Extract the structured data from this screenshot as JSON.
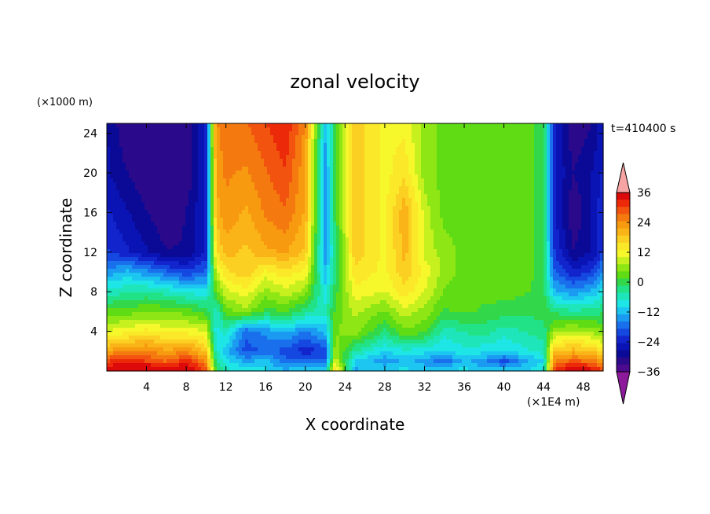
{
  "chart_data": {
    "type": "heatmap",
    "title": "zonal velocity",
    "time_label": "t=410400 s",
    "xlabel": "X coordinate",
    "ylabel": "Z coordinate",
    "x_unit": "(×1E4 m)",
    "y_unit": "(×1000 m)",
    "xlim": [
      0,
      50
    ],
    "ylim": [
      0,
      25
    ],
    "x_ticks": [
      "4",
      "8",
      "12",
      "16",
      "20",
      "24",
      "28",
      "32",
      "36",
      "40",
      "44",
      "48"
    ],
    "x_tick_values": [
      4,
      8,
      12,
      16,
      20,
      24,
      28,
      32,
      36,
      40,
      44,
      48
    ],
    "y_ticks": [
      "4",
      "8",
      "12",
      "16",
      "20",
      "24"
    ],
    "y_tick_values": [
      4,
      8,
      12,
      16,
      20,
      24
    ],
    "colorbar": {
      "levels": [
        -42,
        -39,
        -36,
        -33,
        -30,
        -27,
        -24,
        -21,
        -18,
        -15,
        -12,
        -9,
        -6,
        -3,
        0,
        3,
        6,
        9,
        12,
        15,
        18,
        21,
        24,
        27,
        30,
        33,
        36,
        39,
        42
      ],
      "tick_labels": [
        "36",
        "24",
        "12",
        "0",
        "−12",
        "−24",
        "−36"
      ],
      "tick_values": [
        36,
        24,
        12,
        0,
        -12,
        -24,
        -36
      ],
      "colors": [
        "#dc0a0a",
        "#ec2a0a",
        "#f25410",
        "#f47a10",
        "#f89a10",
        "#fbb418",
        "#fbd022",
        "#fbe828",
        "#f6f82c",
        "#c6f01e",
        "#8ee614",
        "#5fdc14",
        "#32d84a",
        "#22e288",
        "#1ee6ba",
        "#1ee6e6",
        "#1cc6f0",
        "#1a9af0",
        "#1a70ec",
        "#1448e0",
        "#1224cc",
        "#0a14b4",
        "#0a0a96",
        "#2a0a8a",
        "#4c0a8e"
      ],
      "over_color": "#f6a4a4",
      "under_color": "#8c1a9a"
    },
    "x": [
      0,
      2,
      4,
      6,
      8,
      10,
      11,
      12,
      14,
      16,
      18,
      20,
      22,
      23,
      25,
      28,
      30,
      32,
      34,
      36,
      38,
      40,
      42,
      44,
      45,
      47,
      49,
      50
    ],
    "z": [
      0,
      1,
      2,
      4,
      6,
      8,
      10,
      12,
      16,
      20,
      25
    ],
    "values": [
      [
        36,
        38,
        39,
        36,
        38,
        30,
        0,
        -6,
        -8,
        -9,
        -12,
        -10,
        -9,
        18,
        -14,
        -10,
        -9,
        -12,
        -10,
        -9,
        -12,
        -11,
        -10,
        -8,
        30,
        38,
        34,
        30
      ],
      [
        30,
        32,
        30,
        27,
        32,
        24,
        -3,
        -9,
        -14,
        -12,
        -18,
        -16,
        -18,
        10,
        -10,
        -15,
        -12,
        -14,
        -18,
        -12,
        -15,
        -20,
        -14,
        -10,
        24,
        28,
        26,
        22
      ],
      [
        22,
        24,
        25,
        22,
        24,
        18,
        -6,
        -12,
        -20,
        -18,
        -20,
        -24,
        -20,
        6,
        -4,
        -10,
        -8,
        -9,
        -10,
        -8,
        -9,
        -10,
        -8,
        -6,
        18,
        20,
        18,
        14
      ],
      [
        10,
        12,
        14,
        12,
        12,
        10,
        -9,
        -6,
        -18,
        -15,
        -12,
        -16,
        -12,
        4,
        6,
        -2,
        4,
        2,
        -6,
        -4,
        -3,
        -6,
        -4,
        -3,
        6,
        8,
        6,
        4
      ],
      [
        2,
        3,
        4,
        4,
        3,
        0,
        -6,
        3,
        6,
        0,
        2,
        -3,
        -6,
        2,
        8,
        4,
        9,
        6,
        1,
        2,
        1,
        0,
        -1,
        0,
        -2,
        -4,
        -3,
        -2
      ],
      [
        -6,
        -5,
        -4,
        -6,
        -8,
        -9,
        3,
        9,
        12,
        6,
        9,
        6,
        -9,
        0,
        12,
        10,
        15,
        10,
        4,
        3,
        2,
        3,
        2,
        0,
        -12,
        -15,
        -12,
        -9
      ],
      [
        -15,
        -12,
        -15,
        -18,
        -21,
        -18,
        9,
        15,
        18,
        12,
        15,
        12,
        -12,
        -3,
        15,
        12,
        18,
        12,
        6,
        3,
        3,
        3,
        3,
        0,
        -18,
        -24,
        -21,
        -15
      ],
      [
        -21,
        -24,
        -27,
        -30,
        -30,
        -24,
        15,
        20,
        18,
        21,
        22,
        18,
        -15,
        -3,
        18,
        12,
        20,
        9,
        6,
        3,
        3,
        3,
        3,
        0,
        -21,
        -30,
        -27,
        -21
      ],
      [
        -24,
        -27,
        -30,
        -33,
        -30,
        -24,
        20,
        24,
        21,
        25,
        27,
        21,
        -15,
        0,
        18,
        12,
        21,
        9,
        3,
        3,
        3,
        3,
        3,
        0,
        -24,
        -33,
        -27,
        -21
      ],
      [
        -27,
        -30,
        -33,
        -33,
        -33,
        -24,
        22,
        25,
        24,
        27,
        30,
        22,
        -15,
        0,
        18,
        12,
        15,
        6,
        3,
        3,
        3,
        3,
        3,
        0,
        -24,
        -30,
        -27,
        -24
      ],
      [
        -27,
        -33,
        -33,
        -33,
        -33,
        -24,
        24,
        27,
        27,
        30,
        33,
        24,
        -12,
        0,
        18,
        12,
        12,
        6,
        3,
        3,
        3,
        3,
        3,
        0,
        -24,
        -33,
        -30,
        -24
      ]
    ]
  }
}
